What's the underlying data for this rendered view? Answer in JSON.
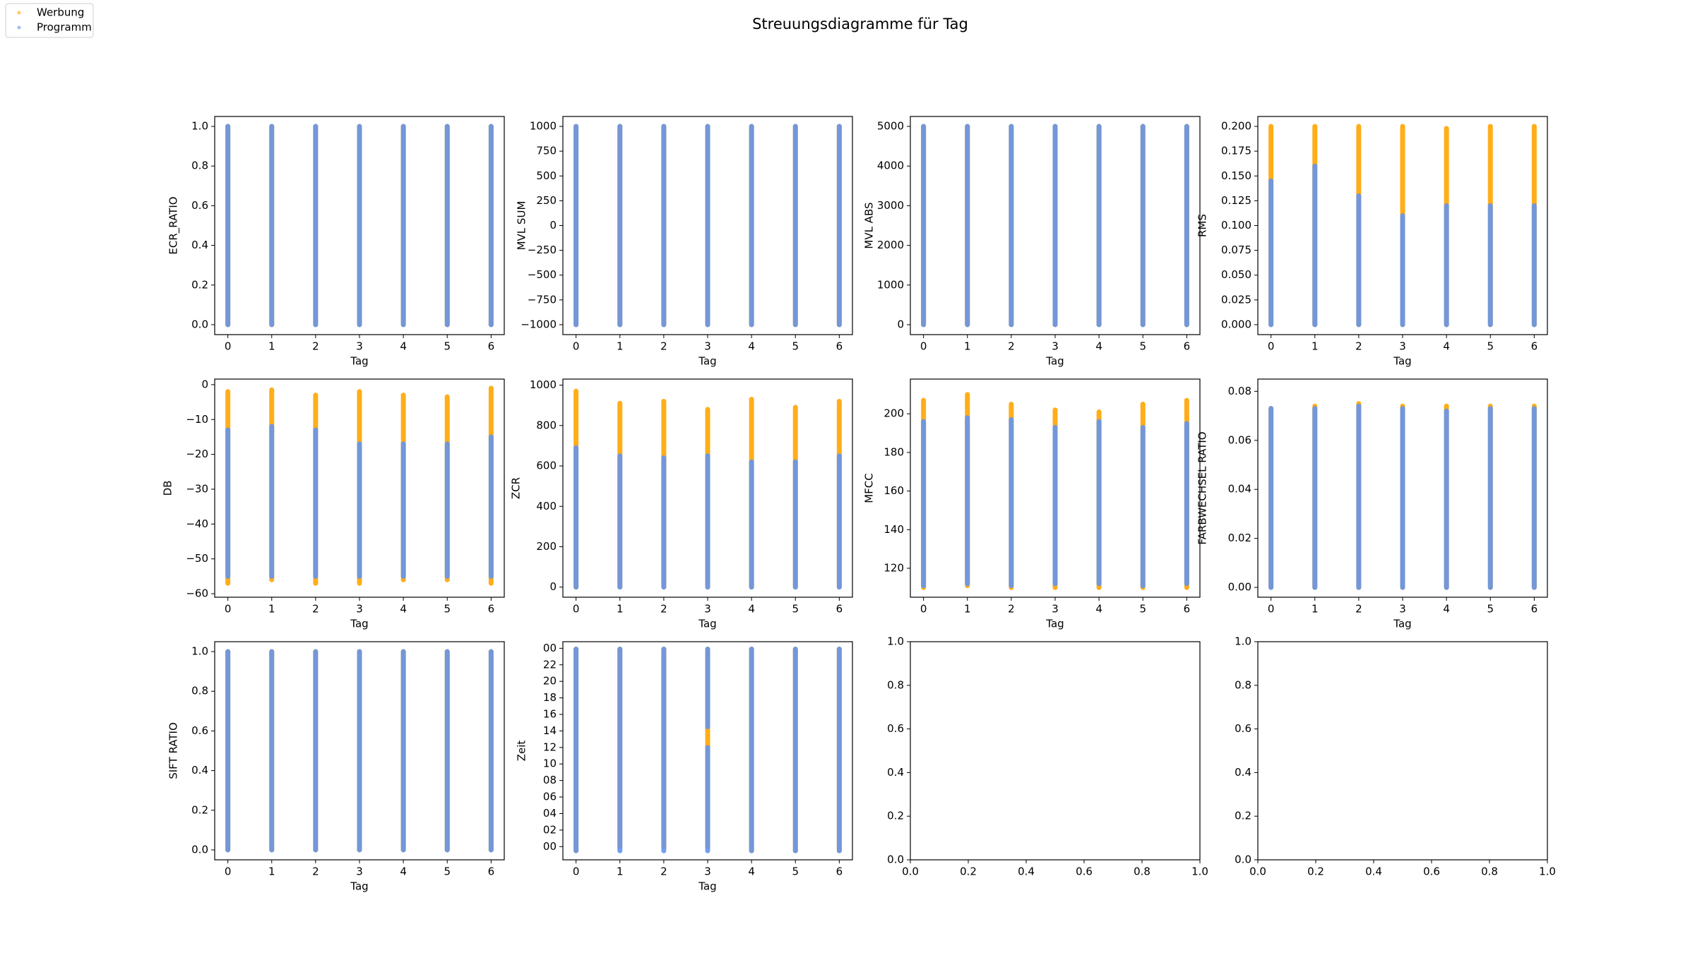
{
  "title": "Streuungsdiagramme für Tag",
  "legend": "upper left",
  "chart_data": [
    {
      "type": "scatter",
      "xlabel": "Tag",
      "ylabel": "ECR_RATIO",
      "xlim": [
        -0.3,
        6.3
      ],
      "xticks": [
        0,
        1,
        2,
        3,
        4,
        5,
        6
      ],
      "ylim": [
        -0.05,
        1.05
      ],
      "yticks": [
        {
          "value": 0,
          "label": "0.0"
        },
        0.2,
        0.4,
        0.6,
        0.8,
        {
          "value": 1,
          "label": "1.0"
        }
      ],
      "series": [
        {
          "name": "Werbung",
          "color": "#ffa500",
          "x": [
            0,
            1,
            2,
            3,
            4,
            5,
            6
          ],
          "low": [
            0,
            0,
            0,
            0,
            0,
            0,
            0
          ],
          "high": [
            1,
            1,
            1,
            1,
            1,
            1,
            1
          ]
        },
        {
          "name": "Programm",
          "color": "#6495ed",
          "x": [
            0,
            1,
            2,
            3,
            4,
            5,
            6
          ],
          "low": [
            0,
            0,
            0,
            0,
            0,
            0,
            0
          ],
          "high": [
            1,
            1,
            1,
            1,
            1,
            1,
            1
          ]
        }
      ]
    },
    {
      "type": "scatter",
      "xlabel": "Tag",
      "ylabel": "MVL SUM",
      "xlim": [
        -0.3,
        6.3
      ],
      "xticks": [
        0,
        1,
        2,
        3,
        4,
        5,
        6
      ],
      "ylim": [
        -1100,
        1100
      ],
      "yticks": [
        {
          "value": -1000,
          "label": "−1000"
        },
        {
          "value": -750,
          "label": "−750"
        },
        {
          "value": -500,
          "label": "−500"
        },
        {
          "value": -250,
          "label": "−250"
        },
        0,
        250,
        500,
        750,
        1000
      ],
      "series": [
        {
          "name": "Werbung",
          "color": "#ffa500",
          "x": [
            0,
            1,
            2,
            3,
            4,
            5,
            6
          ],
          "low": [
            -1000,
            -1000,
            -1000,
            -1000,
            -1000,
            -1000,
            -1000
          ],
          "high": [
            1000,
            1000,
            1000,
            1000,
            1000,
            1000,
            1000
          ]
        },
        {
          "name": "Programm",
          "color": "#6495ed",
          "x": [
            0,
            1,
            2,
            3,
            4,
            5,
            6
          ],
          "low": [
            -1000,
            -1000,
            -1000,
            -1000,
            -1000,
            -1000,
            -1000
          ],
          "high": [
            1000,
            1000,
            1000,
            1000,
            1000,
            1000,
            1000
          ]
        }
      ]
    },
    {
      "type": "scatter",
      "xlabel": "Tag",
      "ylabel": "MVL ABS",
      "xlim": [
        -0.3,
        6.3
      ],
      "xticks": [
        0,
        1,
        2,
        3,
        4,
        5,
        6
      ],
      "ylim": [
        -250,
        5250
      ],
      "yticks": [
        0,
        1000,
        2000,
        3000,
        4000,
        5000
      ],
      "series": [
        {
          "name": "Werbung",
          "color": "#ffa500",
          "x": [
            0,
            1,
            2,
            3,
            4,
            5,
            6
          ],
          "low": [
            0,
            0,
            0,
            0,
            0,
            0,
            0
          ],
          "high": [
            5000,
            5000,
            5000,
            5000,
            5000,
            5000,
            5000
          ]
        },
        {
          "name": "Programm",
          "color": "#6495ed",
          "x": [
            0,
            1,
            2,
            3,
            4,
            5,
            6
          ],
          "low": [
            0,
            0,
            0,
            0,
            0,
            0,
            0
          ],
          "high": [
            5000,
            5000,
            5000,
            5000,
            5000,
            5000,
            5000
          ]
        }
      ]
    },
    {
      "type": "scatter",
      "xlabel": "Tag",
      "ylabel": "RMS",
      "xlim": [
        -0.3,
        6.3
      ],
      "xticks": [
        0,
        1,
        2,
        3,
        4,
        5,
        6
      ],
      "ylim": [
        -0.01,
        0.21
      ],
      "yticks": [
        {
          "value": 0,
          "label": "0.000"
        },
        0.025,
        {
          "value": 0.05,
          "label": "0.050"
        },
        0.075,
        {
          "value": 0.1,
          "label": "0.100"
        },
        0.125,
        {
          "value": 0.15,
          "label": "0.150"
        },
        0.175,
        {
          "value": 0.2,
          "label": "0.200"
        }
      ],
      "series": [
        {
          "name": "Werbung",
          "color": "#ffa500",
          "x": [
            0,
            1,
            2,
            3,
            4,
            5,
            6
          ],
          "low": [
            0,
            0,
            0,
            0,
            0,
            0,
            0
          ],
          "high": [
            0.2,
            0.2,
            0.2,
            0.2,
            0.198,
            0.2,
            0.2
          ]
        },
        {
          "name": "Programm",
          "color": "#6495ed",
          "x": [
            0,
            1,
            2,
            3,
            4,
            5,
            6
          ],
          "low": [
            0,
            0,
            0,
            0,
            0,
            0,
            0
          ],
          "high": [
            0.145,
            0.16,
            0.13,
            0.11,
            0.12,
            0.12,
            0.12
          ]
        }
      ]
    },
    {
      "type": "scatter",
      "xlabel": "Tag",
      "ylabel": "DB",
      "xlim": [
        -0.3,
        6.3
      ],
      "xticks": [
        0,
        1,
        2,
        3,
        4,
        5,
        6
      ],
      "ylim": [
        -61,
        1.6
      ],
      "yticks": [
        {
          "value": -60,
          "label": "−60"
        },
        {
          "value": -50,
          "label": "−50"
        },
        {
          "value": -40,
          "label": "−40"
        },
        {
          "value": -30,
          "label": "−30"
        },
        {
          "value": -20,
          "label": "−20"
        },
        {
          "value": -10,
          "label": "−10"
        },
        0
      ],
      "series": [
        {
          "name": "Werbung",
          "color": "#ffa500",
          "x": [
            0,
            1,
            2,
            3,
            4,
            5,
            6
          ],
          "low": [
            -57,
            -56,
            -57,
            -57,
            -56,
            -56,
            -57
          ],
          "high": [
            -2,
            -1.5,
            -3,
            -2,
            -3,
            -3.5,
            -1
          ]
        },
        {
          "name": "Programm",
          "color": "#6495ed",
          "x": [
            0,
            1,
            2,
            3,
            4,
            5,
            6
          ],
          "low": [
            -55,
            -55,
            -55,
            -55,
            -55,
            -55,
            -55
          ],
          "high": [
            -13,
            -12,
            -13,
            -17,
            -17,
            -17,
            -15
          ]
        }
      ]
    },
    {
      "type": "scatter",
      "xlabel": "Tag",
      "ylabel": "ZCR",
      "xlim": [
        -0.3,
        6.3
      ],
      "xticks": [
        0,
        1,
        2,
        3,
        4,
        5,
        6
      ],
      "ylim": [
        -50,
        1030
      ],
      "yticks": [
        0,
        200,
        400,
        600,
        800,
        1000
      ],
      "series": [
        {
          "name": "Werbung",
          "color": "#ffa500",
          "x": [
            0,
            1,
            2,
            3,
            4,
            5,
            6
          ],
          "low": [
            0,
            0,
            0,
            0,
            0,
            0,
            0
          ],
          "high": [
            970,
            910,
            920,
            880,
            930,
            890,
            920
          ]
        },
        {
          "name": "Programm",
          "color": "#6495ed",
          "x": [
            0,
            1,
            2,
            3,
            4,
            5,
            6
          ],
          "low": [
            0,
            0,
            0,
            0,
            0,
            0,
            0
          ],
          "high": [
            690,
            650,
            640,
            650,
            620,
            620,
            650
          ]
        }
      ]
    },
    {
      "type": "scatter",
      "xlabel": "Tag",
      "ylabel": "MFCC",
      "xlim": [
        -0.3,
        6.3
      ],
      "xticks": [
        0,
        1,
        2,
        3,
        4,
        5,
        6
      ],
      "ylim": [
        105,
        218
      ],
      "yticks": [
        120,
        140,
        160,
        180,
        200
      ],
      "series": [
        {
          "name": "Werbung",
          "color": "#ffa500",
          "x": [
            0,
            1,
            2,
            3,
            4,
            5,
            6
          ],
          "low": [
            110,
            111,
            110,
            110,
            110,
            110,
            110
          ],
          "high": [
            207,
            210,
            205,
            202,
            201,
            205,
            207
          ]
        },
        {
          "name": "Programm",
          "color": "#6495ed",
          "x": [
            0,
            1,
            2,
            3,
            4,
            5,
            6
          ],
          "low": [
            111,
            112,
            111,
            112,
            112,
            111,
            112
          ],
          "high": [
            196,
            198,
            197,
            193,
            196,
            193,
            195
          ]
        }
      ]
    },
    {
      "type": "scatter",
      "xlabel": "Tag",
      "ylabel": "FARBWECHSEL RATIO",
      "xlim": [
        -0.3,
        6.3
      ],
      "xticks": [
        0,
        1,
        2,
        3,
        4,
        5,
        6
      ],
      "ylim": [
        -0.004,
        0.085
      ],
      "yticks": [
        {
          "value": 0,
          "label": "0.00"
        },
        0.02,
        0.04,
        0.06,
        0.08
      ],
      "series": [
        {
          "name": "Werbung",
          "color": "#ffa500",
          "x": [
            0,
            1,
            2,
            3,
            4,
            5,
            6
          ],
          "low": [
            0,
            0,
            0,
            0,
            0,
            0,
            0
          ],
          "high": [
            0.073,
            0.074,
            0.075,
            0.074,
            0.074,
            0.074,
            0.074
          ]
        },
        {
          "name": "Programm",
          "color": "#6495ed",
          "x": [
            0,
            1,
            2,
            3,
            4,
            5,
            6
          ],
          "low": [
            0,
            0,
            0,
            0,
            0,
            0,
            0
          ],
          "high": [
            0.073,
            0.073,
            0.074,
            0.073,
            0.072,
            0.073,
            0.073
          ]
        }
      ]
    },
    {
      "type": "scatter",
      "xlabel": "Tag",
      "ylabel": "SIFT RATIO",
      "xlim": [
        -0.3,
        6.3
      ],
      "xticks": [
        0,
        1,
        2,
        3,
        4,
        5,
        6
      ],
      "ylim": [
        -0.05,
        1.05
      ],
      "yticks": [
        {
          "value": 0,
          "label": "0.0"
        },
        0.2,
        0.4,
        0.6,
        0.8,
        {
          "value": 1,
          "label": "1.0"
        }
      ],
      "series": [
        {
          "name": "Werbung",
          "color": "#ffa500",
          "x": [
            0,
            1,
            2,
            3,
            4,
            5,
            6
          ],
          "low": [
            0,
            0,
            0,
            0,
            0,
            0,
            0
          ],
          "high": [
            1,
            1,
            1,
            1,
            1,
            1,
            1
          ]
        },
        {
          "name": "Programm",
          "color": "#6495ed",
          "x": [
            0,
            1,
            2,
            3,
            4,
            5,
            6
          ],
          "low": [
            0,
            0,
            0,
            0,
            0,
            0,
            0
          ],
          "high": [
            1,
            1,
            1,
            1,
            1,
            1,
            1
          ]
        }
      ]
    },
    {
      "type": "scatter",
      "xlabel": "Tag",
      "ylabel": "Zeit",
      "xlim": [
        -0.3,
        6.3
      ],
      "xticks": [
        0,
        1,
        2,
        3,
        4,
        5,
        6
      ],
      "ylim": [
        -1.6,
        24.8
      ],
      "yticks": [
        {
          "value": 0,
          "label": "00"
        },
        {
          "value": 2,
          "label": "02"
        },
        {
          "value": 4,
          "label": "04"
        },
        {
          "value": 6,
          "label": "06"
        },
        {
          "value": 8,
          "label": "08"
        },
        10,
        12,
        14,
        16,
        18,
        20,
        22,
        {
          "value": 24,
          "label": "00"
        }
      ],
      "series": [
        {
          "name": "Werbung",
          "color": "#ffa500",
          "x": [
            0,
            1,
            2,
            3,
            4,
            5,
            6
          ],
          "low": [
            -0.5,
            0,
            0,
            0,
            -0.5,
            -0.5,
            -0.5
          ],
          "high": [
            23.9,
            23.9,
            23.9,
            23.9,
            23.9,
            23.9,
            23.9
          ]
        },
        {
          "name": "Programm",
          "color": "#6495ed",
          "x": [
            0,
            1,
            2,
            3,
            3,
            4,
            5,
            6
          ],
          "low": [
            -0.5,
            -0.5,
            -0.5,
            -0.5,
            14.5,
            -0.5,
            -0.5,
            -0.5
          ],
          "high": [
            23.9,
            23.9,
            23.9,
            12,
            23.9,
            23.9,
            23.9,
            23.9
          ]
        }
      ]
    },
    {
      "type": "scatter",
      "xlim": [
        0,
        1
      ],
      "ylim": [
        0,
        1
      ],
      "xticks": [
        {
          "value": 0,
          "label": "0.0"
        },
        0.2,
        0.4,
        0.6,
        0.8,
        {
          "value": 1,
          "label": "1.0"
        }
      ],
      "yticks": [
        {
          "value": 0,
          "label": "0.0"
        },
        0.2,
        0.4,
        0.6,
        0.8,
        {
          "value": 1,
          "label": "1.0"
        }
      ]
    },
    {
      "type": "scatter",
      "xlim": [
        0,
        1
      ],
      "ylim": [
        0,
        1
      ],
      "xticks": [
        {
          "value": 0,
          "label": "0.0"
        },
        0.2,
        0.4,
        0.6,
        0.8,
        {
          "value": 1,
          "label": "1.0"
        }
      ],
      "yticks": [
        {
          "value": 0,
          "label": "0.0"
        },
        0.2,
        0.4,
        0.6,
        0.8,
        {
          "value": 1,
          "label": "1.0"
        }
      ]
    }
  ]
}
